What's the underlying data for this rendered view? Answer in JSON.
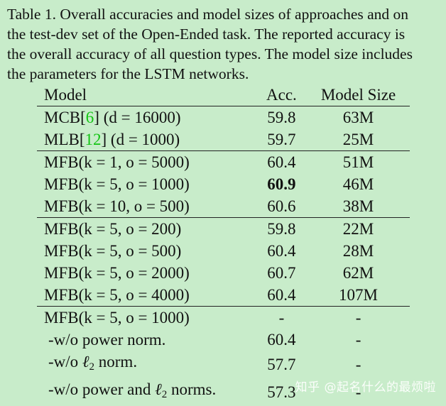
{
  "caption": {
    "lines": [
      "Table 1. Overall accuracies and model sizes of approaches and on",
      "the test-dev set of the Open-Ended task. The reported accuracy is",
      "the overall accuracy of all question types. The model size includes",
      "the parameters for the LSTM networks."
    ]
  },
  "table": {
    "headers": [
      "Model",
      "Acc.",
      "Model Size"
    ],
    "rows": [
      {
        "model_prefix": "MCB[",
        "ref": "6",
        "model_suffix": "] (d = 16000)",
        "acc": "59.8",
        "size": "63M"
      },
      {
        "model_prefix": "MLB[",
        "ref": "12",
        "model_suffix": "] (d = 1000)",
        "acc": "59.7",
        "size": "25M"
      },
      {
        "model": "MFB(k = 1, o = 5000)",
        "acc": "60.4",
        "size": "51M"
      },
      {
        "model": "MFB(k = 5, o = 1000)",
        "acc": "60.9",
        "size": "46M"
      },
      {
        "model": "MFB(k = 10, o = 500)",
        "acc": "60.6",
        "size": "38M"
      },
      {
        "model": "MFB(k = 5, o = 200)",
        "acc": "59.8",
        "size": "22M"
      },
      {
        "model": "MFB(k = 5, o = 500)",
        "acc": "60.4",
        "size": "28M"
      },
      {
        "model": "MFB(k = 5, o = 2000)",
        "acc": "60.7",
        "size": "62M"
      },
      {
        "model": "MFB(k = 5, o = 4000)",
        "acc": "60.4",
        "size": "107M"
      },
      {
        "model": "MFB(k = 5, o = 1000)",
        "acc": "-",
        "size": "-"
      },
      {
        "model": "-w/o power norm.",
        "acc": "60.4",
        "size": "-"
      },
      {
        "model_prefix": "-w/o ",
        "sym": "ℓ",
        "sub": "2",
        "model_suffix": " norm.",
        "acc": "57.7",
        "size": "-"
      },
      {
        "model_prefix": "-w/o power and ",
        "sym": "ℓ",
        "sub": "2",
        "model_suffix": " norms.",
        "acc": "57.3",
        "size": "-"
      }
    ]
  },
  "watermark": "知乎 @起名什么的最烦啦",
  "colors": {
    "background": "#c8ecca",
    "reference_link": "#12c412"
  }
}
